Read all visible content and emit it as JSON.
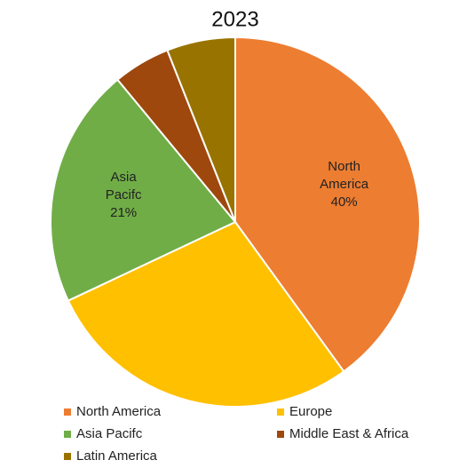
{
  "chart_data": {
    "type": "pie",
    "title": "2023",
    "categories": [
      "North America",
      "Europe",
      "Asia Pacifc",
      "Middle East & Africa",
      "Latin America"
    ],
    "values": [
      40,
      28,
      21,
      5,
      6
    ],
    "value_labels": [
      "40%",
      null,
      "21%",
      null,
      null
    ],
    "colors": [
      "#ed7d31",
      "#ffc000",
      "#70ad47",
      "#9e480e",
      "#997300"
    ],
    "legend": "bottom"
  }
}
